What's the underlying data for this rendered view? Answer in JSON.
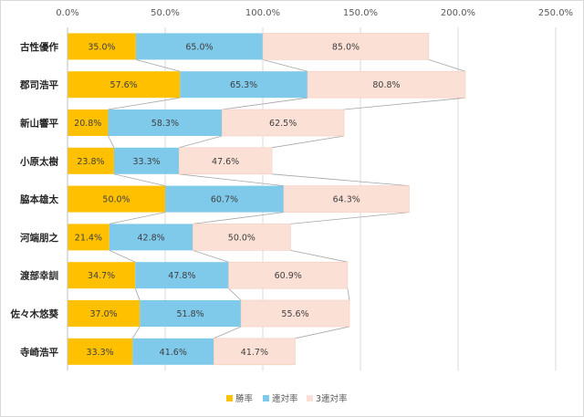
{
  "chart_data": {
    "type": "bar",
    "orientation": "horizontal",
    "stacked": true,
    "categories": [
      "古性優作",
      "郡司浩平",
      "新山響平",
      "小原太樹",
      "脇本雄太",
      "河端朋之",
      "渡部幸訓",
      "佐々木悠葵",
      "寺崎浩平"
    ],
    "series": [
      {
        "name": "勝率",
        "color": "#FFC000",
        "values": [
          35.0,
          57.6,
          20.8,
          23.8,
          50.0,
          21.4,
          34.7,
          37.0,
          33.3
        ]
      },
      {
        "name": "連対率",
        "color": "#7FC9EA",
        "values": [
          65.0,
          65.3,
          58.3,
          33.3,
          60.7,
          42.8,
          47.8,
          51.8,
          41.6
        ]
      },
      {
        "name": "3連対率",
        "color": "#FBE0D6",
        "values": [
          85.0,
          80.8,
          62.5,
          47.6,
          64.3,
          50.0,
          60.9,
          55.6,
          41.7
        ]
      }
    ],
    "data_labels": [
      [
        "35.0%",
        "65.0%",
        "85.0%"
      ],
      [
        "57.6%",
        "65.3%",
        "80.8%"
      ],
      [
        "20.8%",
        "58.3%",
        "62.5%"
      ],
      [
        "23.8%",
        "33.3%",
        "47.6%"
      ],
      [
        "50.0%",
        "60.7%",
        "64.3%"
      ],
      [
        "21.4%",
        "42.8%",
        "50.0%"
      ],
      [
        "34.7%",
        "47.8%",
        "60.9%"
      ],
      [
        "37.0%",
        "51.8%",
        "55.6%"
      ],
      [
        "33.3%",
        "41.6%",
        "41.7%"
      ]
    ],
    "x_ticks": [
      "0.0%",
      "50.0%",
      "100.0%",
      "150.0%",
      "200.0%",
      "250.0%"
    ],
    "xlim": [
      0,
      250
    ],
    "series_lines": true,
    "grid": true,
    "legend_position": "bottom",
    "title": "",
    "xlabel": "",
    "ylabel": ""
  }
}
